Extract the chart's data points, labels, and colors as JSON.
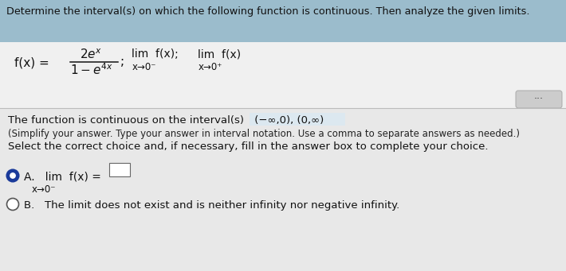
{
  "bg_color": "#e8e8e8",
  "header_bg": "#9bbccc",
  "formula_bg": "#f0f0f0",
  "body_bg": "#e8e8e8",
  "header_text": "Determine the interval(s) on which the following function is continuous. Then analyze the given limits.",
  "body_line1a": "The function is continuous on the interval(s)",
  "body_line1b": " (−∞,0), (0,∞)",
  "body_line2": "(Simplify your answer. Type your answer in interval notation. Use a comma to separate answers as needed.)",
  "body_line3": "Select the correct choice and, if necessary, fill in the answer box to complete your choice.",
  "choice_a_main": "A.   lim  f(x) =",
  "choice_a_sub": "x→0⁻",
  "choice_b_text": "The limit does not exist and is neither infinity nor negative infinity.",
  "radio_selected_color": "#1a3a9a",
  "text_color": "#111111",
  "separator_color": "#bbbbbb",
  "dots_bg": "#cccccc",
  "dots_border": "#aaaaaa"
}
